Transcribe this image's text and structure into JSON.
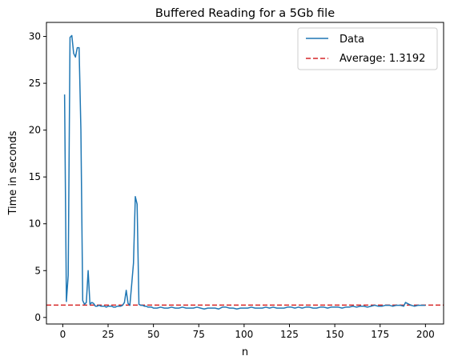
{
  "chart_data": {
    "type": "line",
    "title": "Buffered Reading for a 5Gb file",
    "xlabel": "n",
    "ylabel": "Time in seconds",
    "xlim": [
      -9,
      210
    ],
    "ylim": [
      -0.7,
      31.5
    ],
    "xticks": [
      0,
      25,
      50,
      75,
      100,
      125,
      150,
      175,
      200
    ],
    "yticks": [
      0,
      5,
      10,
      15,
      20,
      25,
      30
    ],
    "grid": false,
    "legend_position": "upper right",
    "series": [
      {
        "name": "Data",
        "color": "#1f77b4",
        "style": "solid",
        "x": [
          1,
          2,
          3,
          4,
          5,
          6,
          7,
          8,
          9,
          10,
          11,
          12,
          13,
          14,
          15,
          16,
          17,
          18,
          19,
          20,
          21,
          22,
          23,
          24,
          25,
          26,
          27,
          28,
          29,
          30,
          31,
          32,
          33,
          34,
          35,
          36,
          37,
          38,
          39,
          40,
          41,
          42,
          43,
          44,
          45,
          46,
          47,
          48,
          49,
          50,
          52,
          54,
          56,
          58,
          60,
          62,
          64,
          66,
          68,
          70,
          72,
          74,
          76,
          78,
          80,
          82,
          84,
          86,
          88,
          90,
          92,
          94,
          96,
          98,
          100,
          102,
          104,
          106,
          108,
          110,
          112,
          114,
          116,
          118,
          120,
          122,
          124,
          126,
          128,
          130,
          132,
          134,
          136,
          138,
          140,
          142,
          144,
          146,
          148,
          150,
          152,
          154,
          156,
          158,
          160,
          162,
          164,
          166,
          168,
          170,
          172,
          174,
          176,
          178,
          180,
          182,
          184,
          186,
          188,
          189,
          190,
          192,
          194,
          196,
          198,
          200
        ],
        "y": [
          23.8,
          1.7,
          4.5,
          29.9,
          30.1,
          28.2,
          27.8,
          28.8,
          28.8,
          20.0,
          1.8,
          1.4,
          1.6,
          5.0,
          1.4,
          1.6,
          1.5,
          1.2,
          1.2,
          1.3,
          1.2,
          1.2,
          1.2,
          1.1,
          1.2,
          1.2,
          1.2,
          1.1,
          1.1,
          1.2,
          1.2,
          1.2,
          1.3,
          1.6,
          2.9,
          1.5,
          1.3,
          3.5,
          5.8,
          12.9,
          12.1,
          1.4,
          1.3,
          1.3,
          1.2,
          1.2,
          1.1,
          1.1,
          1.1,
          1.0,
          1.0,
          1.1,
          1.0,
          1.0,
          1.1,
          1.0,
          1.0,
          1.1,
          1.0,
          1.0,
          1.0,
          1.1,
          1.0,
          0.9,
          1.0,
          1.0,
          1.0,
          0.9,
          1.1,
          1.1,
          1.0,
          1.0,
          0.9,
          1.0,
          1.0,
          1.0,
          1.1,
          1.0,
          1.0,
          1.0,
          1.1,
          1.0,
          1.1,
          1.0,
          1.0,
          1.0,
          1.1,
          1.1,
          1.0,
          1.1,
          1.0,
          1.1,
          1.1,
          1.0,
          1.0,
          1.1,
          1.1,
          1.0,
          1.1,
          1.1,
          1.1,
          1.0,
          1.1,
          1.1,
          1.2,
          1.1,
          1.2,
          1.2,
          1.1,
          1.2,
          1.3,
          1.2,
          1.2,
          1.3,
          1.3,
          1.2,
          1.3,
          1.3,
          1.2,
          1.6,
          1.5,
          1.3,
          1.2,
          1.3,
          1.3,
          1.3
        ]
      },
      {
        "name": "Average: 1.3192",
        "color": "#d62728",
        "style": "dashed",
        "y_constant": 1.3192
      }
    ]
  }
}
